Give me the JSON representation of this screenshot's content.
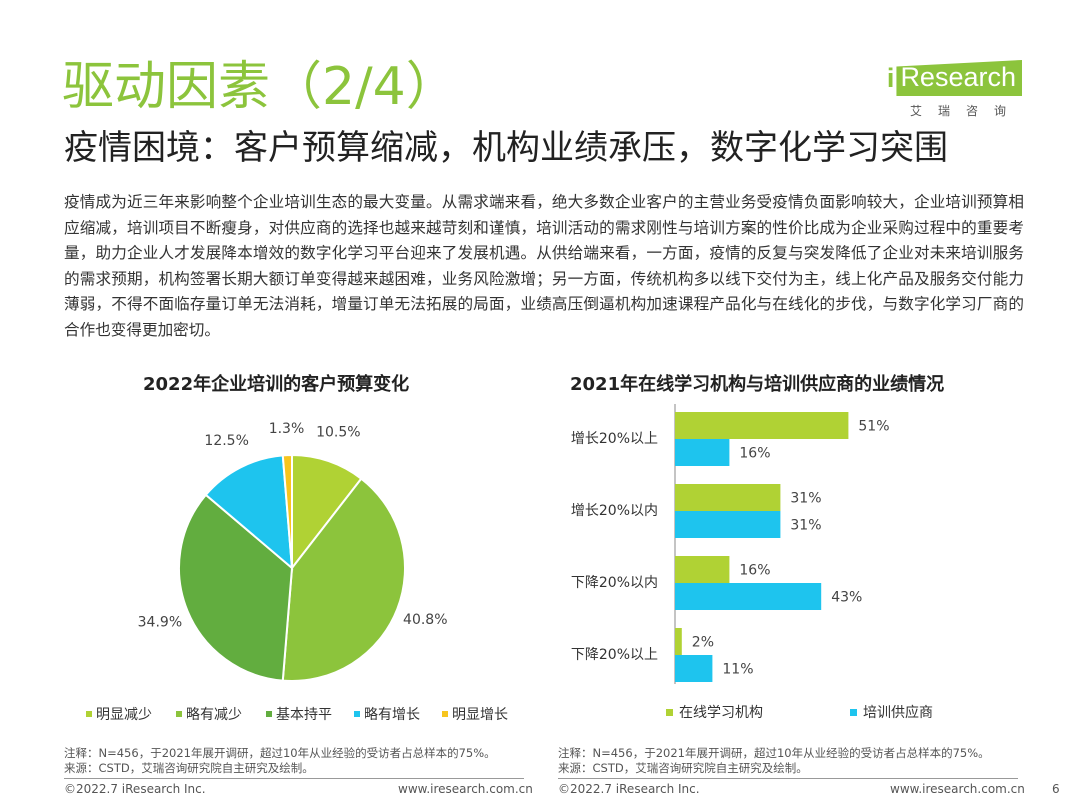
{
  "title": "驱动因素（2/4）",
  "subtitle": "疫情困境：客户预算缩减，机构业绩承压，数字化学习突围",
  "body": "疫情成为近三年来影响整个企业培训生态的最大变量。从需求端来看，绝大多数企业客户的主营业务受疫情负面影响较大，企业培训预算相应缩减，培训项目不断瘦身，对供应商的选择也越来越苛刻和谨慎，培训活动的需求刚性与培训方案的性价比成为企业采购过程中的重要考量，助力企业人才发展降本增效的数字化学习平台迎来了发展机遇。从供给端来看，一方面，疫情的反复与突发降低了企业对未来培训服务的需求预期，机构签署长期大额订单变得越来越困难，业务风险激增；另一方面，传统机构多以线下交付为主，线上化产品及服务交付能力薄弱，不得不面临存量订单无法消耗，增量订单无法拓展的局面，业绩高压倒逼机构加速课程产品化与在线化的步伐，与数字化学习厂商的合作也变得更加密切。",
  "logo": {
    "brand_i": "i",
    "brand_rest": "Research",
    "sub": "艾瑞咨询"
  },
  "chart_data": [
    {
      "type": "pie",
      "title": "2022年企业培训的客户预算变化",
      "slices": [
        {
          "label": "明显减少",
          "value": 10.5,
          "value_label": "10.5%",
          "color": "#b0d234"
        },
        {
          "label": "略有减少",
          "value": 40.8,
          "value_label": "40.8%",
          "color": "#8cc43c"
        },
        {
          "label": "基本持平",
          "value": 34.9,
          "value_label": "34.9%",
          "color": "#62ad3f"
        },
        {
          "label": "略有增长",
          "value": 12.5,
          "value_label": "12.5%",
          "color": "#1ec4ee"
        },
        {
          "label": "明显增长",
          "value": 1.3,
          "value_label": "1.3%",
          "color": "#f7c51e"
        }
      ],
      "legend_position": "bottom"
    },
    {
      "type": "bar",
      "orientation": "horizontal",
      "title": "2021年在线学习机构与培训供应商的业绩情况",
      "categories": [
        "增长20%以上",
        "增长20%以内",
        "下降20%以内",
        "下降20%以上"
      ],
      "series": [
        {
          "name": "在线学习机构",
          "color": "#b0d234",
          "values": [
            51,
            31,
            16,
            2
          ],
          "value_labels": [
            "51%",
            "31%",
            "16%",
            "2%"
          ]
        },
        {
          "name": "培训供应商",
          "color": "#1ec4ee",
          "values": [
            16,
            31,
            43,
            11
          ],
          "value_labels": [
            "16%",
            "31%",
            "43%",
            "11%"
          ]
        }
      ],
      "xlim": [
        0,
        100
      ],
      "legend_position": "bottom"
    }
  ],
  "notes": {
    "left": [
      "注释：N=456，于2021年展开调研，超过10年从业经验的受访者占总样本的75%。",
      "来源：CSTD，艾瑞咨询研究院自主研究及绘制。"
    ],
    "right": [
      "注释：N=456，于2021年展开调研，超过10年从业经验的受访者占总样本的75%。",
      "来源：CSTD，艾瑞咨询研究院自主研究及绘制。"
    ]
  },
  "footer": {
    "left_copyright": "©2022.7 iResearch Inc.",
    "left_url": "www.iresearch.com.cn",
    "right_copyright": "©2022.7 iResearch Inc.",
    "right_url": "www.iresearch.com.cn",
    "page_number": "6"
  }
}
